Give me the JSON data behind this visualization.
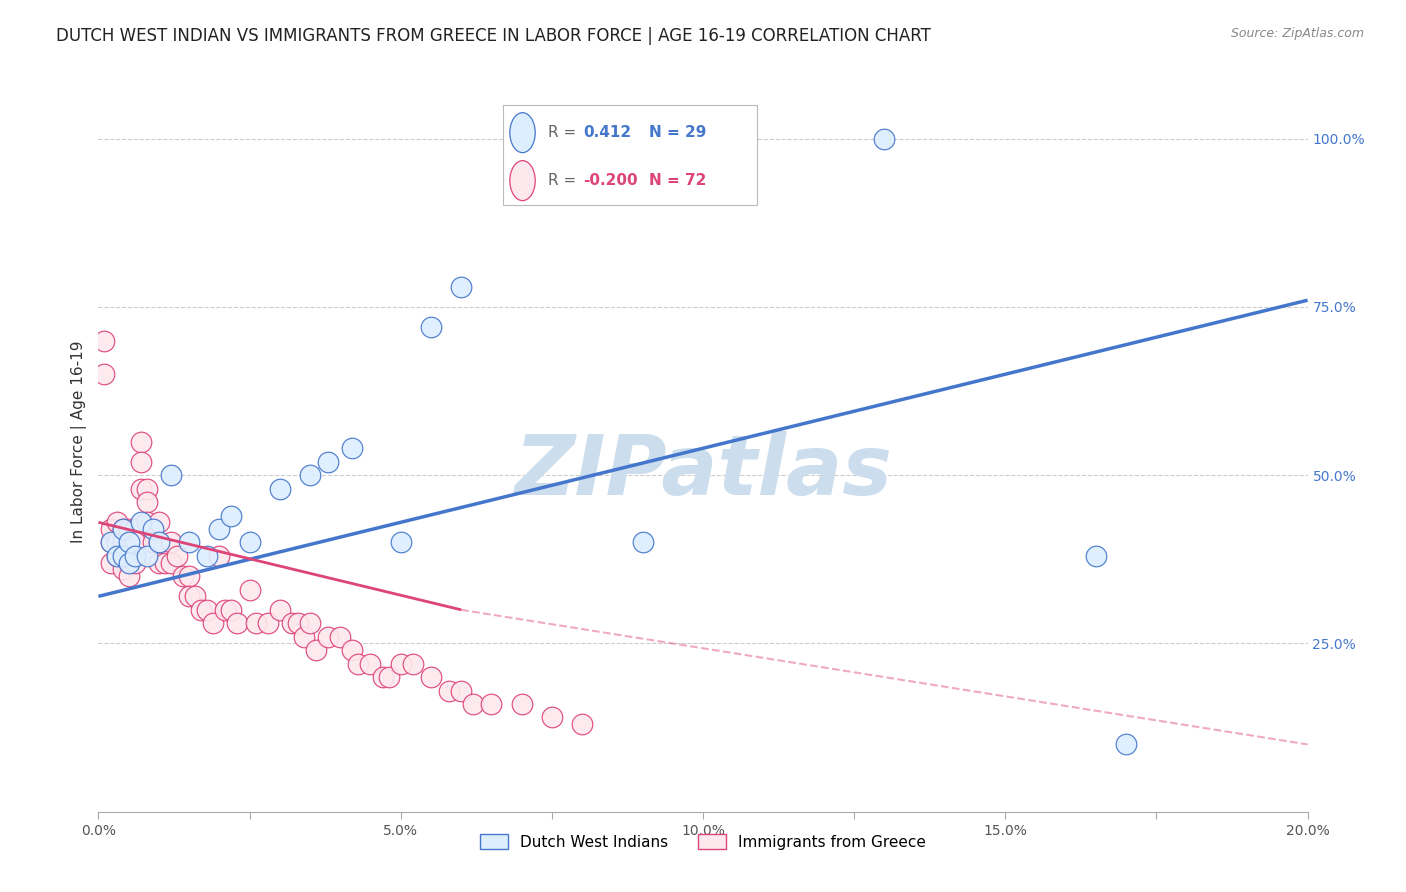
{
  "title": "DUTCH WEST INDIAN VS IMMIGRANTS FROM GREECE IN LABOR FORCE | AGE 16-19 CORRELATION CHART",
  "source": "Source: ZipAtlas.com",
  "ylabel": "In Labor Force | Age 16-19",
  "xmin": 0.0,
  "xmax": 0.2,
  "ymin": 0.0,
  "ymax": 1.1,
  "blue_R": "0.412",
  "blue_N": "29",
  "pink_R": "-0.200",
  "pink_N": "72",
  "legend_label_blue": "Dutch West Indians",
  "legend_label_pink": "Immigrants from Greece",
  "watermark": "ZIPatlas",
  "blue_scatter_x": [
    0.002,
    0.003,
    0.004,
    0.004,
    0.005,
    0.005,
    0.006,
    0.007,
    0.008,
    0.009,
    0.01,
    0.012,
    0.015,
    0.018,
    0.02,
    0.022,
    0.025,
    0.03,
    0.035,
    0.038,
    0.042,
    0.05,
    0.055,
    0.06,
    0.075,
    0.09,
    0.13,
    0.165,
    0.17
  ],
  "blue_scatter_y": [
    0.4,
    0.38,
    0.42,
    0.38,
    0.4,
    0.37,
    0.38,
    0.43,
    0.38,
    0.42,
    0.4,
    0.5,
    0.4,
    0.38,
    0.42,
    0.44,
    0.4,
    0.48,
    0.5,
    0.52,
    0.54,
    0.4,
    0.72,
    0.78,
    1.0,
    0.4,
    1.0,
    0.38,
    0.1
  ],
  "pink_scatter_x": [
    0.001,
    0.001,
    0.002,
    0.002,
    0.002,
    0.003,
    0.003,
    0.003,
    0.004,
    0.004,
    0.004,
    0.004,
    0.005,
    0.005,
    0.005,
    0.005,
    0.005,
    0.006,
    0.006,
    0.006,
    0.007,
    0.007,
    0.007,
    0.008,
    0.008,
    0.008,
    0.009,
    0.009,
    0.01,
    0.01,
    0.01,
    0.011,
    0.012,
    0.012,
    0.013,
    0.014,
    0.015,
    0.015,
    0.016,
    0.017,
    0.018,
    0.019,
    0.02,
    0.021,
    0.022,
    0.023,
    0.025,
    0.026,
    0.028,
    0.03,
    0.032,
    0.033,
    0.034,
    0.035,
    0.036,
    0.038,
    0.04,
    0.042,
    0.043,
    0.045,
    0.047,
    0.048,
    0.05,
    0.052,
    0.055,
    0.058,
    0.06,
    0.062,
    0.065,
    0.07,
    0.075,
    0.08
  ],
  "pink_scatter_y": [
    0.7,
    0.65,
    0.4,
    0.37,
    0.42,
    0.43,
    0.4,
    0.38,
    0.42,
    0.4,
    0.38,
    0.36,
    0.42,
    0.4,
    0.38,
    0.37,
    0.35,
    0.42,
    0.4,
    0.37,
    0.55,
    0.52,
    0.48,
    0.48,
    0.46,
    0.43,
    0.42,
    0.4,
    0.43,
    0.4,
    0.37,
    0.37,
    0.4,
    0.37,
    0.38,
    0.35,
    0.35,
    0.32,
    0.32,
    0.3,
    0.3,
    0.28,
    0.38,
    0.3,
    0.3,
    0.28,
    0.33,
    0.28,
    0.28,
    0.3,
    0.28,
    0.28,
    0.26,
    0.28,
    0.24,
    0.26,
    0.26,
    0.24,
    0.22,
    0.22,
    0.2,
    0.2,
    0.22,
    0.22,
    0.2,
    0.18,
    0.18,
    0.16,
    0.16,
    0.16,
    0.14,
    0.13
  ],
  "blue_line_x": [
    0.0,
    0.2
  ],
  "blue_line_y": [
    0.32,
    0.76
  ],
  "pink_solid_line_x": [
    0.0,
    0.06
  ],
  "pink_solid_line_y": [
    0.43,
    0.3
  ],
  "pink_dash_line_x": [
    0.06,
    0.2
  ],
  "pink_dash_line_y": [
    0.3,
    0.1
  ],
  "color_blue": "#aaccee",
  "color_blue_fill": "#ddeeff",
  "color_blue_line": "#4477cc",
  "color_pink": "#f8b8c8",
  "color_pink_fill": "#fde8ee",
  "color_pink_line": "#dd4477",
  "color_grid": "#cccccc",
  "bg_color": "#ffffff",
  "title_fontsize": 12,
  "source_fontsize": 9,
  "watermark_color": "#ccdded",
  "watermark_fontsize": 60
}
